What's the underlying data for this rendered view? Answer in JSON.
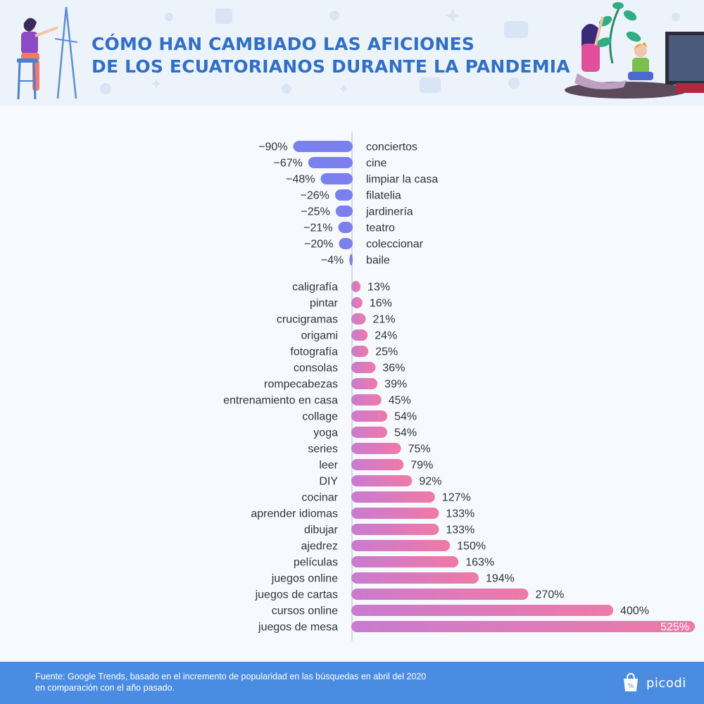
{
  "header": {
    "title_line1": "CÓMO HAN CAMBIADO LAS AFICIONES",
    "title_line2": "DE LOS ECUATORIANOS DURANTE LA PANDEMIA"
  },
  "colors": {
    "title": "#2f6fcb",
    "negative_bar": "#7a80ee",
    "positive_bar_start": "#c97bd0",
    "positive_bar_end": "#ef7aa6",
    "footer": "#4b8ce3"
  },
  "chart_data": {
    "type": "bar",
    "orientation": "horizontal",
    "value_suffix": "%",
    "negative_items": [
      {
        "label": "conciertos",
        "value": -90,
        "display": "−90%"
      },
      {
        "label": "cine",
        "value": -67,
        "display": "−67%"
      },
      {
        "label": "limpiar la casa",
        "value": -48,
        "display": "−48%"
      },
      {
        "label": "filatelia",
        "value": -26,
        "display": "−26%"
      },
      {
        "label": "jardinería",
        "value": -25,
        "display": "−25%"
      },
      {
        "label": "teatro",
        "value": -21,
        "display": "−21%"
      },
      {
        "label": "coleccionar",
        "value": -20,
        "display": "−20%"
      },
      {
        "label": "baile",
        "value": -4,
        "display": "−4%"
      }
    ],
    "positive_items": [
      {
        "label": "caligrafía",
        "value": 13,
        "display": "13%"
      },
      {
        "label": "pintar",
        "value": 16,
        "display": "16%"
      },
      {
        "label": "crucigramas",
        "value": 21,
        "display": "21%"
      },
      {
        "label": "origami",
        "value": 24,
        "display": "24%"
      },
      {
        "label": "fotografía",
        "value": 25,
        "display": "25%"
      },
      {
        "label": "consolas",
        "value": 36,
        "display": "36%"
      },
      {
        "label": "rompecabezas",
        "value": 39,
        "display": "39%"
      },
      {
        "label": "entrenamiento en casa",
        "value": 45,
        "display": "45%"
      },
      {
        "label": "collage",
        "value": 54,
        "display": "54%"
      },
      {
        "label": "yoga",
        "value": 54,
        "display": "54%"
      },
      {
        "label": "series",
        "value": 75,
        "display": "75%"
      },
      {
        "label": "leer",
        "value": 79,
        "display": "79%"
      },
      {
        "label": "DIY",
        "value": 92,
        "display": "92%"
      },
      {
        "label": "cocinar",
        "value": 127,
        "display": "127%"
      },
      {
        "label": "aprender idiomas",
        "value": 133,
        "display": "133%"
      },
      {
        "label": "dibujar",
        "value": 133,
        "display": "133%"
      },
      {
        "label": "ajedrez",
        "value": 150,
        "display": "150%"
      },
      {
        "label": "películas",
        "value": 163,
        "display": "163%"
      },
      {
        "label": "juegos online",
        "value": 194,
        "display": "194%"
      },
      {
        "label": "juegos de cartas",
        "value": 270,
        "display": "270%"
      },
      {
        "label": "cursos online",
        "value": 400,
        "display": "400%"
      },
      {
        "label": "juegos de mesa",
        "value": 525,
        "display": "525%"
      }
    ]
  },
  "footer": {
    "source_line1": "Fuente: Google Trends, basado en el incremento de popularidad en las búsquedas en abril del 2020",
    "source_line2": "en comparación con el año pasado.",
    "brand": "picodi"
  }
}
